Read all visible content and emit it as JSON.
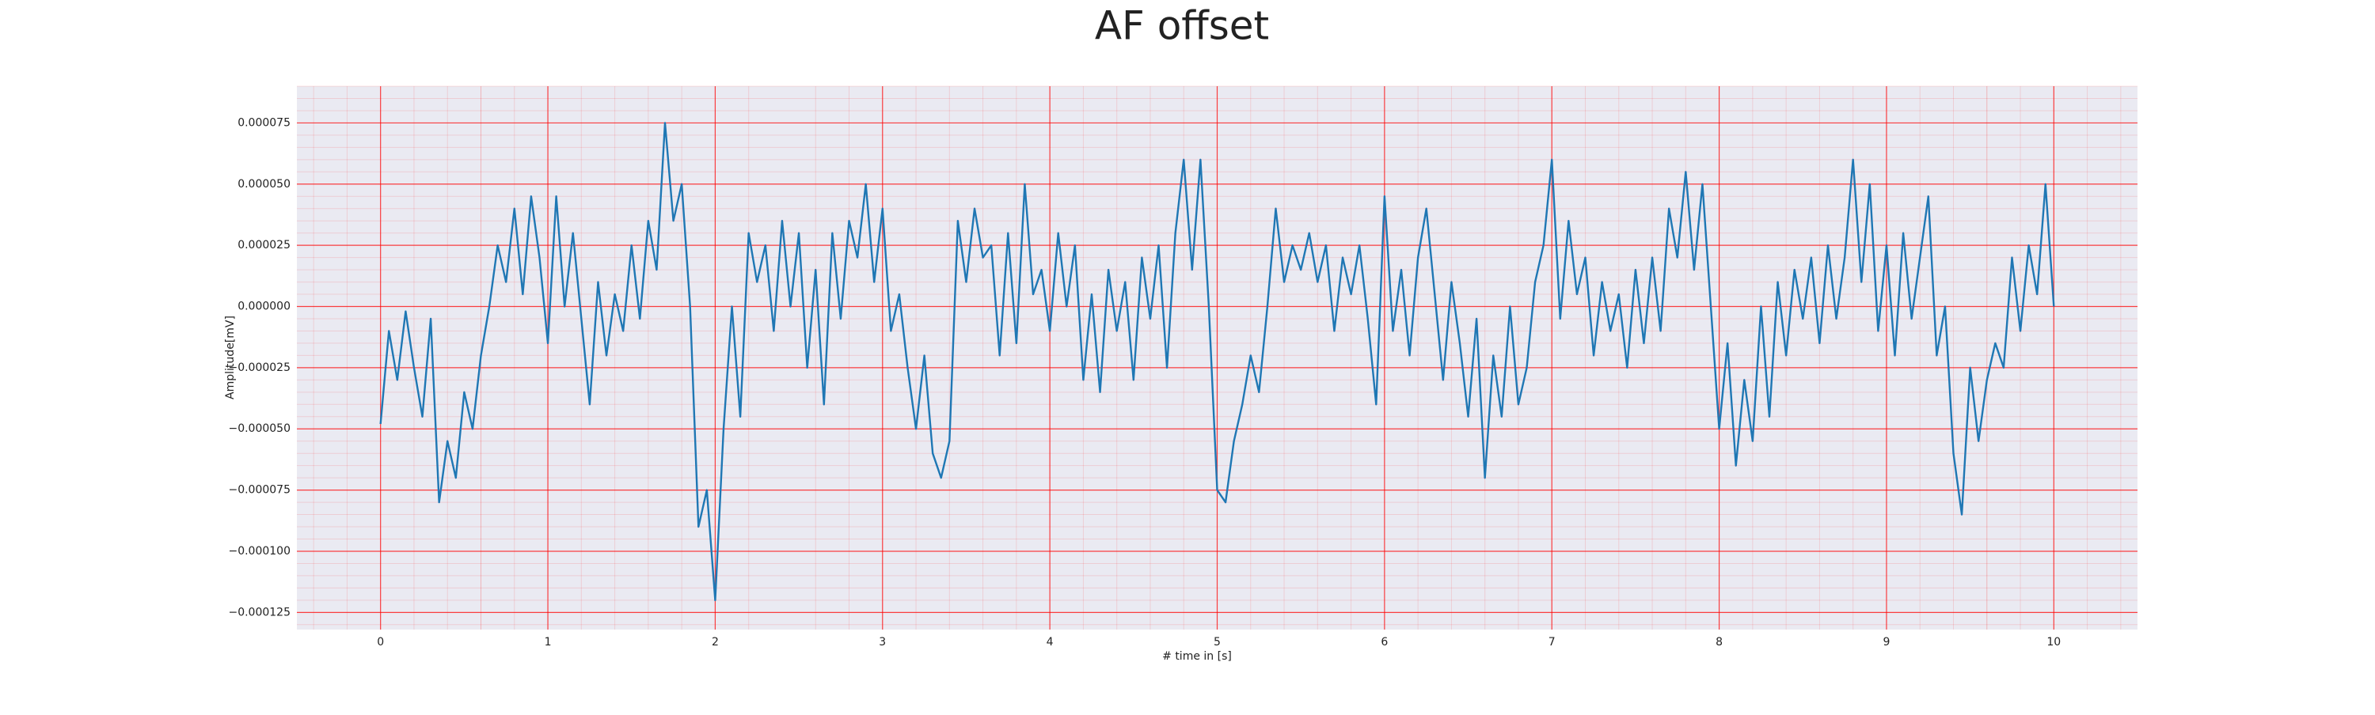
{
  "chart_data": {
    "type": "line",
    "title": "AF offset",
    "x_label": "# time in [s]",
    "y_label": "Amplitude[mV]",
    "color": "#1f77b4",
    "grid": true,
    "grid_color": "#ff0000",
    "minor_grid": true,
    "background": "#eaeaf2",
    "xlim": [
      -0.5,
      10.5
    ],
    "xticks": [
      0,
      1,
      2,
      3,
      4,
      5,
      6,
      7,
      8,
      9,
      10
    ],
    "ylim": [
      -0.000132,
      9e-05
    ],
    "yticks": [
      {
        "value": -0.000125,
        "label": "−0.000125"
      },
      {
        "value": -0.0001,
        "label": "−0.000100"
      },
      {
        "value": -7.5e-05,
        "label": "−0.000075"
      },
      {
        "value": -5e-05,
        "label": "−0.000050"
      },
      {
        "value": -2.5e-05,
        "label": "−0.000025"
      },
      {
        "value": 0,
        "label": "0.000000"
      },
      {
        "value": 2.5e-05,
        "label": "0.000025"
      },
      {
        "value": 5e-05,
        "label": "0.000050"
      },
      {
        "value": 7.5e-05,
        "label": "0.000075"
      }
    ],
    "x": [
      0,
      0.05,
      0.1,
      0.15,
      0.2,
      0.25,
      0.3,
      0.35,
      0.4,
      0.45,
      0.5,
      0.55,
      0.6,
      0.65,
      0.7,
      0.75,
      0.8,
      0.85,
      0.9,
      0.95,
      1,
      1.05,
      1.1,
      1.15,
      1.2,
      1.25,
      1.3,
      1.35,
      1.4,
      1.45,
      1.5,
      1.55,
      1.6,
      1.65,
      1.7,
      1.75,
      1.8,
      1.85,
      1.9,
      1.95,
      2,
      2.05,
      2.1,
      2.15,
      2.2,
      2.25,
      2.3,
      2.35,
      2.4,
      2.45,
      2.5,
      2.55,
      2.6,
      2.65,
      2.7,
      2.75,
      2.8,
      2.85,
      2.9,
      2.95,
      3,
      3.05,
      3.1,
      3.15,
      3.2,
      3.25,
      3.3,
      3.35,
      3.4,
      3.45,
      3.5,
      3.55,
      3.6,
      3.65,
      3.7,
      3.75,
      3.8,
      3.85,
      3.9,
      3.95,
      4,
      4.05,
      4.1,
      4.15,
      4.2,
      4.25,
      4.3,
      4.35,
      4.4,
      4.45,
      4.5,
      4.55,
      4.6,
      4.65,
      4.7,
      4.75,
      4.8,
      4.85,
      4.9,
      4.95,
      5,
      5.05,
      5.1,
      5.15,
      5.2,
      5.25,
      5.3,
      5.35,
      5.4,
      5.45,
      5.5,
      5.55,
      5.6,
      5.65,
      5.7,
      5.75,
      5.8,
      5.85,
      5.9,
      5.95,
      6,
      6.05,
      6.1,
      6.15,
      6.2,
      6.25,
      6.3,
      6.35,
      6.4,
      6.45,
      6.5,
      6.55,
      6.6,
      6.65,
      6.7,
      6.75,
      6.8,
      6.85,
      6.9,
      6.95,
      7,
      7.05,
      7.1,
      7.15,
      7.2,
      7.25,
      7.3,
      7.35,
      7.4,
      7.45,
      7.5,
      7.55,
      7.6,
      7.65,
      7.7,
      7.75,
      7.8,
      7.85,
      7.9,
      7.95,
      8,
      8.05,
      8.1,
      8.15,
      8.2,
      8.25,
      8.3,
      8.35,
      8.4,
      8.45,
      8.5,
      8.55,
      8.6,
      8.65,
      8.7,
      8.75,
      8.8,
      8.85,
      8.9,
      8.95,
      9,
      9.05,
      9.1,
      9.15,
      9.2,
      9.25,
      9.3,
      9.35,
      9.4,
      9.45,
      9.5,
      9.55,
      9.6,
      9.65,
      9.7,
      9.75,
      9.8,
      9.85,
      9.9,
      9.95,
      10
    ],
    "values": [
      -4.8e-05,
      -1e-05,
      -3e-05,
      -2e-06,
      -2.5e-05,
      -4.5e-05,
      -5e-06,
      -8e-05,
      -5.5e-05,
      -7e-05,
      -3.5e-05,
      -5e-05,
      -2e-05,
      0,
      2.5e-05,
      1e-05,
      4e-05,
      5e-06,
      4.5e-05,
      2e-05,
      -1.5e-05,
      4.5e-05,
      0,
      3e-05,
      -5e-06,
      -4e-05,
      1e-05,
      -2e-05,
      5e-06,
      -1e-05,
      2.5e-05,
      -5e-06,
      3.5e-05,
      1.5e-05,
      7.5e-05,
      3.5e-05,
      5e-05,
      0,
      -9e-05,
      -7.5e-05,
      -0.00012,
      -5e-05,
      0,
      -4.5e-05,
      3e-05,
      1e-05,
      2.5e-05,
      -1e-05,
      3.5e-05,
      0,
      3e-05,
      -2.5e-05,
      1.5e-05,
      -4e-05,
      3e-05,
      -5e-06,
      3.5e-05,
      2e-05,
      5e-05,
      1e-05,
      4e-05,
      -1e-05,
      5e-06,
      -2.5e-05,
      -5e-05,
      -2e-05,
      -6e-05,
      -7e-05,
      -5.5e-05,
      3.5e-05,
      1e-05,
      4e-05,
      2e-05,
      2.5e-05,
      -2e-05,
      3e-05,
      -1.5e-05,
      5e-05,
      5e-06,
      1.5e-05,
      -1e-05,
      3e-05,
      0,
      2.5e-05,
      -3e-05,
      5e-06,
      -3.5e-05,
      1.5e-05,
      -1e-05,
      1e-05,
      -3e-05,
      2e-05,
      -5e-06,
      2.5e-05,
      -2.5e-05,
      3e-05,
      6e-05,
      1.5e-05,
      6e-05,
      0,
      -7.5e-05,
      -8e-05,
      -5.5e-05,
      -4e-05,
      -2e-05,
      -3.5e-05,
      0,
      4e-05,
      1e-05,
      2.5e-05,
      1.5e-05,
      3e-05,
      1e-05,
      2.5e-05,
      -1e-05,
      2e-05,
      5e-06,
      2.5e-05,
      -5e-06,
      -4e-05,
      4.5e-05,
      -1e-05,
      1.5e-05,
      -2e-05,
      2e-05,
      4e-05,
      5e-06,
      -3e-05,
      1e-05,
      -1.5e-05,
      -4.5e-05,
      -5e-06,
      -7e-05,
      -2e-05,
      -4.5e-05,
      0,
      -4e-05,
      -2.5e-05,
      1e-05,
      2.5e-05,
      6e-05,
      -5e-06,
      3.5e-05,
      5e-06,
      2e-05,
      -2e-05,
      1e-05,
      -1e-05,
      5e-06,
      -2.5e-05,
      1.5e-05,
      -1.5e-05,
      2e-05,
      -1e-05,
      4e-05,
      2e-05,
      5.5e-05,
      1.5e-05,
      5e-05,
      0,
      -5e-05,
      -1.5e-05,
      -6.5e-05,
      -3e-05,
      -5.5e-05,
      0,
      -4.5e-05,
      1e-05,
      -2e-05,
      1.5e-05,
      -5e-06,
      2e-05,
      -1.5e-05,
      2.5e-05,
      -5e-06,
      2e-05,
      6e-05,
      1e-05,
      5e-05,
      -1e-05,
      2.5e-05,
      -2e-05,
      3e-05,
      -5e-06,
      2e-05,
      4.5e-05,
      -2e-05,
      0,
      -6e-05,
      -8.5e-05,
      -2.5e-05,
      -5.5e-05,
      -3e-05,
      -1.5e-05,
      -2.5e-05,
      2e-05,
      -1e-05,
      2.5e-05,
      5e-06,
      5e-05,
      0
    ]
  }
}
